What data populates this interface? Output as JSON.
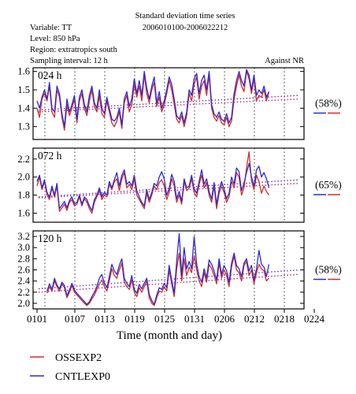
{
  "header": {
    "title": "Standard deviation time series",
    "date_range": "2006010100-2006022212",
    "variable": "Variable: TT",
    "level": "Level: 850 hPa",
    "region": "Region: extratropics south",
    "sampling": "Sampling interval: 12 h",
    "against": "Against NR"
  },
  "legend": [
    {
      "name": "OSSEXP2",
      "color": "#d42a2a"
    },
    {
      "name": "CNTLEXP0",
      "color": "#2a2ad4"
    }
  ],
  "colors": {
    "ossexp2": "#d42a2a",
    "cntlexp0": "#2a2ad4",
    "trend": "#8a1a8a"
  },
  "chart_data": {
    "type": "line",
    "xlabel": "Time (month and day)",
    "x_ticks": [
      "0101",
      "0107",
      "0113",
      "0119",
      "0125",
      "0131",
      "0206",
      "0212",
      "0218",
      "0224"
    ],
    "x_start": "2006-01-01T00",
    "x_step_hours": 12,
    "panels": [
      {
        "label": "024 h",
        "pct": "(58%)",
        "ylim": [
          1.23,
          1.62
        ],
        "yticks": [
          "1.6",
          "1.5",
          "1.4",
          "1.3"
        ],
        "ytick_values": [
          1.6,
          1.5,
          1.4,
          1.3
        ],
        "series": [
          {
            "name": "OSSEXP2",
            "values": [
              1.4,
              1.35,
              1.45,
              1.48,
              1.44,
              1.52,
              1.38,
              1.35,
              1.5,
              1.46,
              1.35,
              1.28,
              1.42,
              1.36,
              1.4,
              1.45,
              1.32,
              1.44,
              1.48,
              1.4,
              1.36,
              1.44,
              1.5,
              1.41,
              1.38,
              1.47,
              1.37,
              1.35,
              1.44,
              1.38,
              1.32,
              1.3,
              1.33,
              1.38,
              1.29,
              1.43,
              1.47,
              1.38,
              1.42,
              1.53,
              1.46,
              1.52,
              1.44,
              1.58,
              1.48,
              1.43,
              1.5,
              1.54,
              1.41,
              1.46,
              1.38,
              1.42,
              1.48,
              1.55,
              1.5,
              1.42,
              1.34,
              1.32,
              1.36,
              1.3,
              1.36,
              1.48,
              1.44,
              1.53,
              1.57,
              1.45,
              1.52,
              1.55,
              1.47,
              1.58,
              1.4,
              1.35,
              1.33,
              1.36,
              1.32,
              1.31,
              1.35,
              1.3,
              1.33,
              1.45,
              1.52,
              1.58,
              1.52,
              1.49,
              1.6,
              1.56,
              1.48,
              1.56,
              1.44,
              1.47,
              1.46,
              1.5,
              1.44,
              1.49
            ]
          },
          {
            "name": "CNTLEXP0",
            "values": [
              1.44,
              1.4,
              1.46,
              1.5,
              1.45,
              1.54,
              1.4,
              1.38,
              1.52,
              1.48,
              1.37,
              1.3,
              1.45,
              1.38,
              1.42,
              1.47,
              1.34,
              1.46,
              1.5,
              1.42,
              1.38,
              1.47,
              1.52,
              1.43,
              1.4,
              1.5,
              1.4,
              1.37,
              1.46,
              1.4,
              1.34,
              1.33,
              1.35,
              1.4,
              1.31,
              1.45,
              1.49,
              1.41,
              1.45,
              1.56,
              1.48,
              1.55,
              1.47,
              1.6,
              1.51,
              1.45,
              1.52,
              1.57,
              1.43,
              1.49,
              1.4,
              1.44,
              1.5,
              1.57,
              1.53,
              1.45,
              1.36,
              1.34,
              1.38,
              1.32,
              1.38,
              1.5,
              1.47,
              1.56,
              1.59,
              1.48,
              1.55,
              1.58,
              1.5,
              1.6,
              1.42,
              1.37,
              1.35,
              1.38,
              1.34,
              1.33,
              1.37,
              1.32,
              1.35,
              1.48,
              1.55,
              1.6,
              1.55,
              1.52,
              1.61,
              1.58,
              1.5,
              1.58,
              1.47,
              1.5,
              1.48,
              1.52,
              1.46,
              1.49
            ]
          }
        ],
        "trends": [
          {
            "series": "OSSEXP2",
            "start": 1.38,
            "end": 1.45
          },
          {
            "series": "CNTLEXP0",
            "start": 1.39,
            "end": 1.47
          }
        ]
      },
      {
        "label": "072 h",
        "pct": "(65%)",
        "ylim": [
          1.5,
          2.32
        ],
        "yticks": [
          "2.2",
          "2.0",
          "1.8",
          "1.6"
        ],
        "ytick_values": [
          2.2,
          2.0,
          1.8,
          1.6
        ],
        "series": [
          {
            "name": "OSSEXP2",
            "values": [
              1.9,
              2.0,
              1.86,
              1.95,
              1.8,
              1.75,
              1.88,
              1.78,
              1.9,
              1.62,
              1.66,
              1.7,
              1.63,
              1.72,
              1.75,
              1.68,
              1.7,
              1.78,
              1.68,
              1.76,
              1.72,
              1.65,
              1.6,
              1.72,
              1.78,
              1.86,
              1.75,
              1.8,
              1.78,
              1.92,
              1.86,
              1.95,
              1.98,
              1.85,
              1.98,
              2.05,
              1.88,
              1.92,
              1.86,
              1.98,
              1.8,
              1.75,
              1.7,
              1.65,
              1.82,
              1.72,
              1.8,
              1.9,
              1.86,
              1.94,
              1.97,
              1.9,
              1.75,
              1.83,
              1.98,
              1.9,
              1.72,
              1.8,
              1.7,
              1.95,
              1.85,
              1.88,
              1.98,
              1.83,
              1.78,
              1.92,
              2.02,
              1.88,
              1.94,
              1.8,
              1.72,
              1.9,
              1.65,
              1.82,
              1.9,
              1.83,
              1.72,
              1.78,
              1.95,
              1.88,
              2.05,
              2.0,
              1.8,
              1.88,
              2.1,
              2.28,
              1.96,
              1.86,
              2.02,
              1.95,
              1.82,
              1.9,
              1.84,
              1.8
            ]
          },
          {
            "name": "CNTLEXP0",
            "values": [
              1.95,
              2.02,
              1.88,
              1.97,
              1.83,
              1.78,
              1.9,
              1.8,
              1.93,
              1.65,
              1.69,
              1.73,
              1.66,
              1.74,
              1.78,
              1.7,
              1.72,
              1.8,
              1.7,
              1.78,
              1.75,
              1.68,
              1.63,
              1.75,
              1.8,
              1.88,
              1.78,
              1.83,
              1.8,
              1.95,
              1.88,
              1.97,
              2.05,
              1.9,
              2.02,
              2.08,
              1.92,
              1.95,
              1.9,
              2.02,
              1.85,
              1.78,
              1.72,
              1.68,
              1.86,
              1.75,
              1.83,
              1.93,
              1.9,
              2.0,
              2.06,
              1.98,
              1.8,
              1.87,
              2.03,
              1.95,
              1.76,
              1.84,
              1.73,
              1.98,
              1.88,
              1.9,
              2.02,
              1.87,
              1.82,
              1.95,
              2.08,
              1.92,
              1.98,
              1.84,
              1.76,
              1.94,
              1.7,
              1.86,
              1.95,
              1.87,
              1.76,
              1.82,
              2.0,
              1.92,
              2.1,
              2.06,
              1.85,
              1.93,
              2.05,
              2.15,
              2.0,
              1.9,
              2.08,
              2.12,
              2.0,
              2.05,
              1.98,
              1.88
            ]
          }
        ],
        "trends": [
          {
            "series": "OSSEXP2",
            "start": 1.77,
            "end": 1.93
          },
          {
            "series": "CNTLEXP0",
            "start": 1.78,
            "end": 1.97
          }
        ]
      },
      {
        "label": "120 h",
        "pct": "(58%)",
        "ylim": [
          1.9,
          3.3
        ],
        "yticks": [
          "3.2",
          "3.0",
          "2.8",
          "2.6",
          "2.4",
          "2.2",
          "2.0"
        ],
        "ytick_values": [
          3.2,
          3.0,
          2.8,
          2.6,
          2.4,
          2.2,
          2.0
        ],
        "series": [
          {
            "name": "OSSEXP2",
            "values": [
              null,
              null,
              null,
              null,
              2.18,
              2.3,
              2.22,
              2.4,
              2.3,
              2.22,
              2.35,
              2.28,
              2.1,
              2.2,
              2.32,
              2.2,
              2.15,
              2.1,
              2.05,
              2.0,
              1.96,
              2.0,
              2.08,
              2.15,
              2.25,
              2.35,
              2.42,
              2.3,
              2.22,
              2.4,
              2.62,
              2.5,
              2.45,
              2.6,
              2.72,
              2.38,
              2.3,
              2.25,
              2.42,
              2.2,
              2.12,
              2.28,
              2.2,
              2.3,
              2.4,
              2.1,
              2.0,
              1.96,
              2.1,
              2.22,
              2.2,
              2.3,
              2.22,
              2.6,
              2.35,
              2.12,
              2.62,
              2.9,
              2.4,
              2.8,
              2.5,
              2.65,
              2.55,
              2.85,
              2.6,
              2.4,
              2.3,
              2.55,
              2.38,
              2.7,
              2.62,
              2.5,
              2.35,
              2.72,
              2.45,
              2.6,
              2.5,
              2.3,
              2.65,
              2.85,
              2.6,
              2.55,
              2.4,
              2.68,
              2.75,
              2.5,
              2.6,
              2.35,
              2.55,
              2.7,
              2.62,
              2.58,
              2.4,
              2.45
            ]
          },
          {
            "name": "CNTLEXP0",
            "values": [
              null,
              null,
              null,
              null,
              2.22,
              2.35,
              2.25,
              2.45,
              2.33,
              2.26,
              2.38,
              2.32,
              2.14,
              2.24,
              2.36,
              2.24,
              2.18,
              2.13,
              2.08,
              2.03,
              1.98,
              2.03,
              2.12,
              2.2,
              2.3,
              2.45,
              2.52,
              2.36,
              2.28,
              2.48,
              2.7,
              2.58,
              2.52,
              2.68,
              2.8,
              2.45,
              2.36,
              2.3,
              2.5,
              2.25,
              2.18,
              2.34,
              2.26,
              2.36,
              2.45,
              2.16,
              2.05,
              1.98,
              2.15,
              2.28,
              2.25,
              2.36,
              2.28,
              2.68,
              2.42,
              2.18,
              2.75,
              3.25,
              2.5,
              3.0,
              2.62,
              2.75,
              2.62,
              3.2,
              2.7,
              2.48,
              2.38,
              2.62,
              2.45,
              2.78,
              2.7,
              2.58,
              2.42,
              2.8,
              2.52,
              2.68,
              2.58,
              2.38,
              2.72,
              2.9,
              2.68,
              2.62,
              2.48,
              2.72,
              2.8,
              2.58,
              2.68,
              2.42,
              2.62,
              2.95,
              2.7,
              2.65,
              2.48,
              2.7
            ]
          }
        ],
        "trends": [
          {
            "series": "OSSEXP2",
            "start": 2.2,
            "end": 2.52
          },
          {
            "series": "CNTLEXP0",
            "start": 2.26,
            "end": 2.6
          }
        ]
      }
    ]
  }
}
